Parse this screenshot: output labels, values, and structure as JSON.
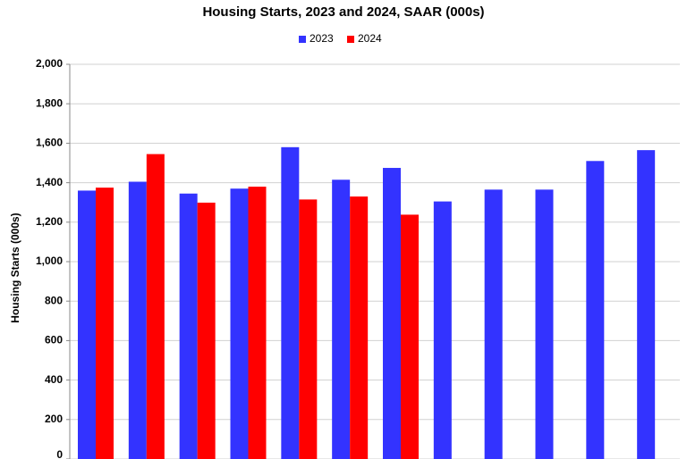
{
  "chart_data": {
    "type": "bar",
    "title": "Housing Starts,  2023 and 2024, SAAR (000s)",
    "y_label": "Housing Starts (000s)",
    "categories": [
      null,
      null,
      null,
      null,
      null,
      null,
      null,
      null,
      null,
      null,
      null,
      null
    ],
    "series": [
      {
        "name": "2023",
        "color": "#3333ff",
        "values": [
          1360,
          1405,
          1345,
          1370,
          1580,
          1415,
          1475,
          1305,
          1365,
          1365,
          1510,
          1565
        ]
      },
      {
        "name": "2024",
        "color": "#ff0000",
        "values": [
          1375,
          1545,
          1299,
          1380,
          1315,
          1330,
          1238,
          null,
          null,
          null,
          null,
          null
        ]
      }
    ],
    "ylim": [
      0,
      2000
    ],
    "yticks": [
      0,
      200,
      400,
      600,
      800,
      {
        "value": 1000,
        "label": "1,000"
      },
      {
        "value": 1200,
        "label": "1,200"
      },
      {
        "value": 1400,
        "label": "1,400"
      },
      {
        "value": 1600,
        "label": "1,600"
      },
      {
        "value": 1800,
        "label": "1,800"
      },
      {
        "value": 2000,
        "label": "2,000"
      }
    ],
    "grid": true,
    "legend": "top"
  }
}
